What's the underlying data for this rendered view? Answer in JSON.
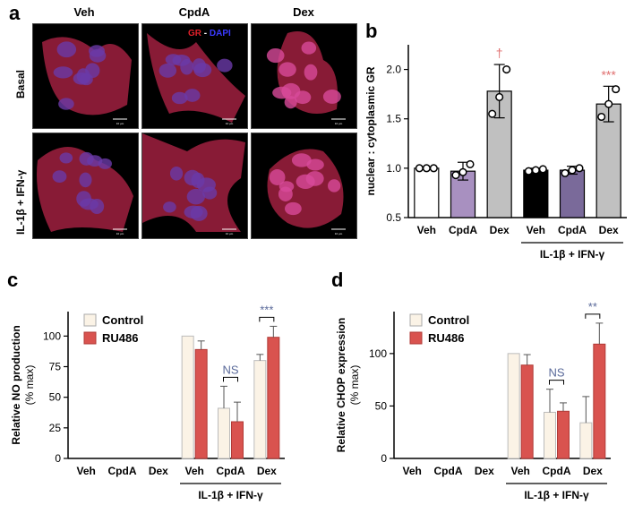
{
  "panel_labels": {
    "a": "a",
    "b": "b",
    "c": "c",
    "d": "d"
  },
  "micrograph_panel": {
    "columns": [
      "Veh",
      "CpdA",
      "Dex"
    ],
    "rows": [
      "Basal",
      "IL-1β + IFN-γ"
    ],
    "stain_gr": "GR",
    "stain_sep": " - ",
    "stain_dapi": "DAPI",
    "scale_bar_label": "10 µm",
    "colors": {
      "gr": "#e0202a",
      "dapi": "#3030e0",
      "background": "#000000"
    }
  },
  "chart_data": [
    {
      "id": "b",
      "type": "bar",
      "ylabel": "nuclear : cytoplasmic GR",
      "ylim": [
        0.5,
        2.25
      ],
      "yticks": [
        "0.5",
        "1.0",
        "1.5",
        "2.0"
      ],
      "categories": [
        "Veh",
        "CpdA",
        "Dex",
        "Veh",
        "CpdA",
        "Dex"
      ],
      "values": [
        1.0,
        0.97,
        1.78,
        0.98,
        0.98,
        1.65
      ],
      "errors": [
        0.0,
        0.09,
        0.27,
        0.02,
        0.04,
        0.18
      ],
      "bar_colors": [
        "#ffffff",
        "#a890c0",
        "#c0c0c0",
        "#000000",
        "#7a6a9a",
        "#c0c0c0"
      ],
      "points": [
        [
          1.0,
          1.0,
          1.0
        ],
        [
          0.93,
          0.96,
          1.04
        ],
        [
          1.55,
          1.72,
          2.0
        ],
        [
          0.97,
          0.98,
          0.99
        ],
        [
          0.95,
          0.98,
          1.0
        ],
        [
          1.52,
          1.65,
          1.8
        ]
      ],
      "annotations": [
        {
          "index": 2,
          "text": "†",
          "color": "#e07070"
        },
        {
          "index": 5,
          "text": "***",
          "color": "#e07070"
        }
      ],
      "group_label": "IL-1β + IFN-γ"
    },
    {
      "id": "c",
      "type": "bar",
      "ylabel": "Relative NO production",
      "ylabel2": "(% max)",
      "ylim": [
        0,
        120
      ],
      "yticks": [
        "0",
        "25",
        "50",
        "75",
        "100"
      ],
      "categories": [
        "Veh",
        "CpdA",
        "Dex",
        "Veh",
        "CpdA",
        "Dex"
      ],
      "series": [
        {
          "name": "Control",
          "color": "#fbf3e6",
          "values": [
            0,
            0,
            0,
            100,
            41,
            80
          ],
          "errors": [
            0,
            0,
            0,
            0,
            18,
            5
          ]
        },
        {
          "name": "RU486",
          "color": "#d9534f",
          "values": [
            0,
            0,
            0,
            89,
            30,
            99
          ],
          "errors": [
            0,
            0,
            0,
            7,
            16,
            9
          ]
        }
      ],
      "significance": [
        {
          "index": 4,
          "text": "NS",
          "color": "#5a6a9a"
        },
        {
          "index": 5,
          "text": "***",
          "color": "#5a6a9a"
        }
      ],
      "group_label": "IL-1β + IFN-γ"
    },
    {
      "id": "d",
      "type": "bar",
      "ylabel": "Relative CHOP expression",
      "ylabel2": "(% max)",
      "ylim": [
        0,
        140
      ],
      "yticks": [
        "0",
        "50",
        "100"
      ],
      "categories": [
        "Veh",
        "CpdA",
        "Dex",
        "Veh",
        "CpdA",
        "Dex"
      ],
      "series": [
        {
          "name": "Control",
          "color": "#fbf3e6",
          "values": [
            0,
            0,
            0,
            100,
            44,
            34
          ],
          "errors": [
            0,
            0,
            0,
            0,
            22,
            25
          ]
        },
        {
          "name": "RU486",
          "color": "#d9534f",
          "values": [
            0,
            0,
            0,
            89,
            45,
            109
          ],
          "errors": [
            0,
            0,
            0,
            10,
            8,
            20
          ]
        }
      ],
      "significance": [
        {
          "index": 4,
          "text": "NS",
          "color": "#5a6a9a"
        },
        {
          "index": 5,
          "text": "**",
          "color": "#5a6a9a"
        }
      ],
      "group_label": "IL-1β + IFN-γ"
    }
  ]
}
